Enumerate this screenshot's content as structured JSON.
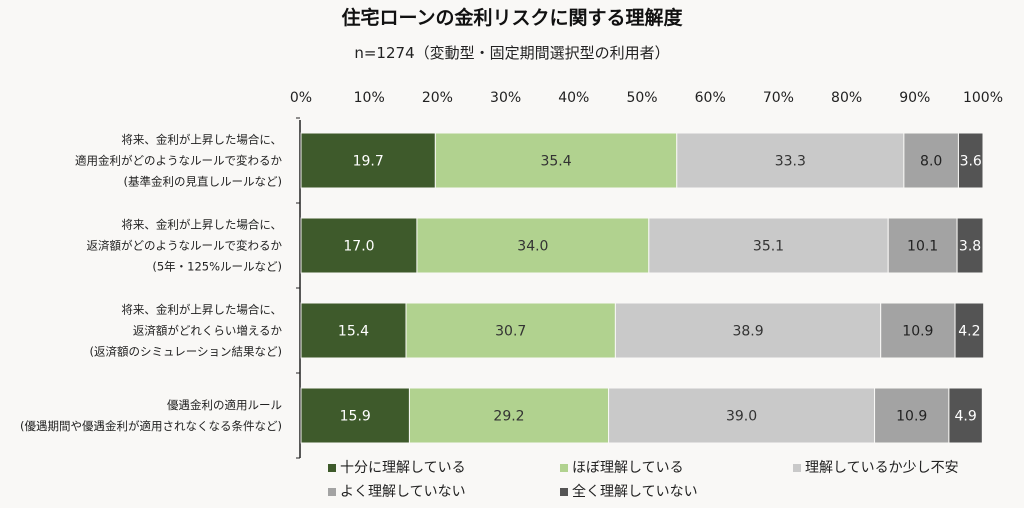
{
  "chart_data": {
    "type": "bar",
    "orientation": "horizontal",
    "stacked": true,
    "title": "住宅ローンの金利リスクに関する理解度",
    "subtitle": "n=1274（変動型・固定期間選択型の利用者）",
    "xlim": [
      0,
      100
    ],
    "x_ticks": [
      "0%",
      "10%",
      "20%",
      "30%",
      "40%",
      "50%",
      "60%",
      "70%",
      "80%",
      "90%",
      "100%"
    ],
    "x_tick_position": "top",
    "grid": false,
    "legend_position": "bottom",
    "categories": [
      [
        "将来、金利が上昇した場合に、",
        "適用金利がどのようなルールで変わるか",
        "(基準金利の見直しルールなど)"
      ],
      [
        "将来、金利が上昇した場合に、",
        "返済額がどのようなルールで変わるか",
        "(5年・125%ルールなど)"
      ],
      [
        "将来、金利が上昇した場合に、",
        "返済額がどれくらい増えるか",
        "(返済額のシミュレーション結果など)"
      ],
      [
        "優遇金利の適用ルール",
        "(優遇期間や優遇金利が適用されなくなる条件など)"
      ]
    ],
    "series": [
      {
        "name": "十分に理解している",
        "color": "#3e5a2b",
        "label_color": "#ffffff",
        "values": [
          19.7,
          17.0,
          15.4,
          15.9
        ]
      },
      {
        "name": "ほぼ理解している",
        "color": "#b1d28f",
        "label_color": "#333333",
        "values": [
          35.4,
          34.0,
          30.7,
          29.2
        ]
      },
      {
        "name": "理解しているか少し不安",
        "color": "#c9c9c9",
        "label_color": "#333333",
        "values": [
          33.3,
          35.1,
          38.9,
          39.0
        ]
      },
      {
        "name": "よく理解していない",
        "color": "#a3a3a3",
        "label_color": "#222222",
        "values": [
          8.0,
          10.1,
          10.9,
          10.9
        ]
      },
      {
        "name": "全く理解していない",
        "color": "#545454",
        "label_color": "#ffffff",
        "values": [
          3.6,
          3.8,
          4.2,
          4.9
        ]
      }
    ]
  }
}
